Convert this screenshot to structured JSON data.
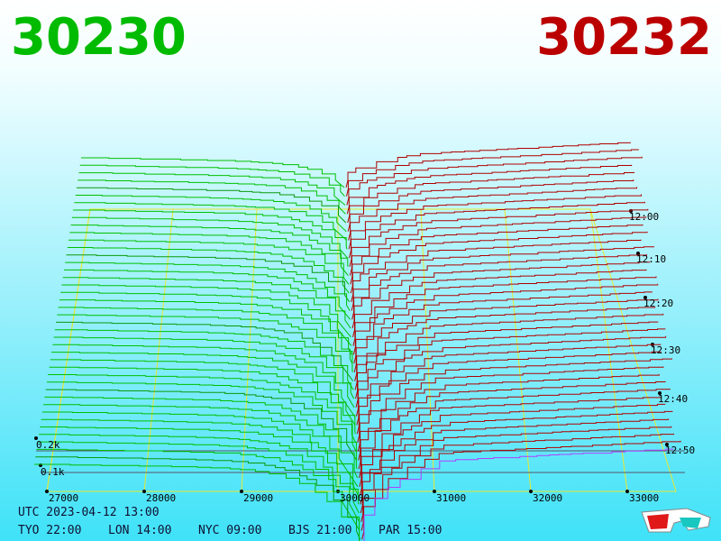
{
  "header": {
    "bid": "30230",
    "ask": "30232"
  },
  "price_axis": [
    "27000",
    "28000",
    "29000",
    "30000",
    "31000",
    "32000",
    "33000"
  ],
  "time_axis": [
    "12:00",
    "12:10",
    "12:20",
    "12:30",
    "12:40",
    "12:50"
  ],
  "depth_axis": [
    "0.2k",
    "0.1k"
  ],
  "footer": {
    "utc": "UTC 2023-04-12 13:00",
    "clocks": [
      "TYO 22:00",
      "LON 14:00",
      "NYC 09:00",
      "BJS 21:00",
      "PAR 15:00"
    ]
  }
}
